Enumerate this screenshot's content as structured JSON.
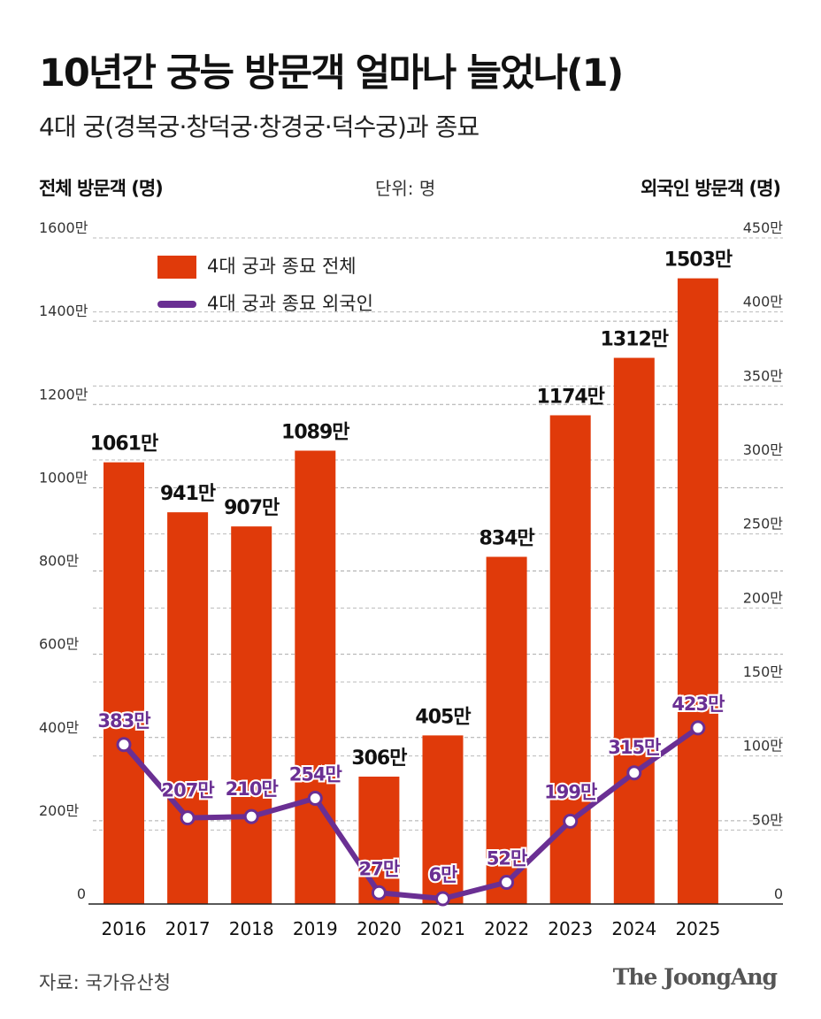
{
  "title": "10년간 궁능 방문객 얼마나 늘었나(1)",
  "subtitle": "4대 궁(경복궁·창덕궁·창경궁·덕수궁)과 종묘",
  "source": "자료: 국가유산청",
  "logo": "The JoongAng",
  "colors": {
    "bar": "#e03a0a",
    "line": "#6a2f93",
    "marker_fill": "#ffffff"
  },
  "chart_data": {
    "type": "bar+line",
    "unit_label": "단위: 명",
    "ylabel_left": "전체 방문객 (명)",
    "ylabel_right": "외국인 방문객 (명)",
    "categories": [
      "2016",
      "2017",
      "2018",
      "2019",
      "2020",
      "2021",
      "2022",
      "2023",
      "2024",
      "2025"
    ],
    "left_ticks": [
      "0",
      "200만",
      "400만",
      "600만",
      "800만",
      "1000만",
      "1200만",
      "1400만",
      "1600만"
    ],
    "right_ticks": [
      "0",
      "50만",
      "100만",
      "150만",
      "200만",
      "250만",
      "300만",
      "350만",
      "400만",
      "450만"
    ],
    "ylim_left": [
      0,
      1600
    ],
    "ylim_right": [
      0,
      450
    ],
    "grid": true,
    "legend_position": "top-left",
    "series": [
      {
        "name": "4대 궁과 종묘 전체",
        "type": "bar",
        "values": [
          1061,
          941,
          907,
          1089,
          306,
          405,
          834,
          1174,
          1312,
          1503
        ],
        "labels": [
          "1061만",
          "941만",
          "907만",
          "1089만",
          "306만",
          "405만",
          "834만",
          "1174만",
          "1312만",
          "1503만"
        ]
      },
      {
        "name": "4대 궁과 종묘 외국인",
        "type": "line",
        "values": [
          383,
          207,
          210,
          254,
          27,
          6,
          52,
          199,
          315,
          423
        ],
        "labels": [
          "383만",
          "207만",
          "210만",
          "254만",
          "27만",
          "6만",
          "52만",
          "199만",
          "315만",
          "423만"
        ]
      }
    ]
  }
}
